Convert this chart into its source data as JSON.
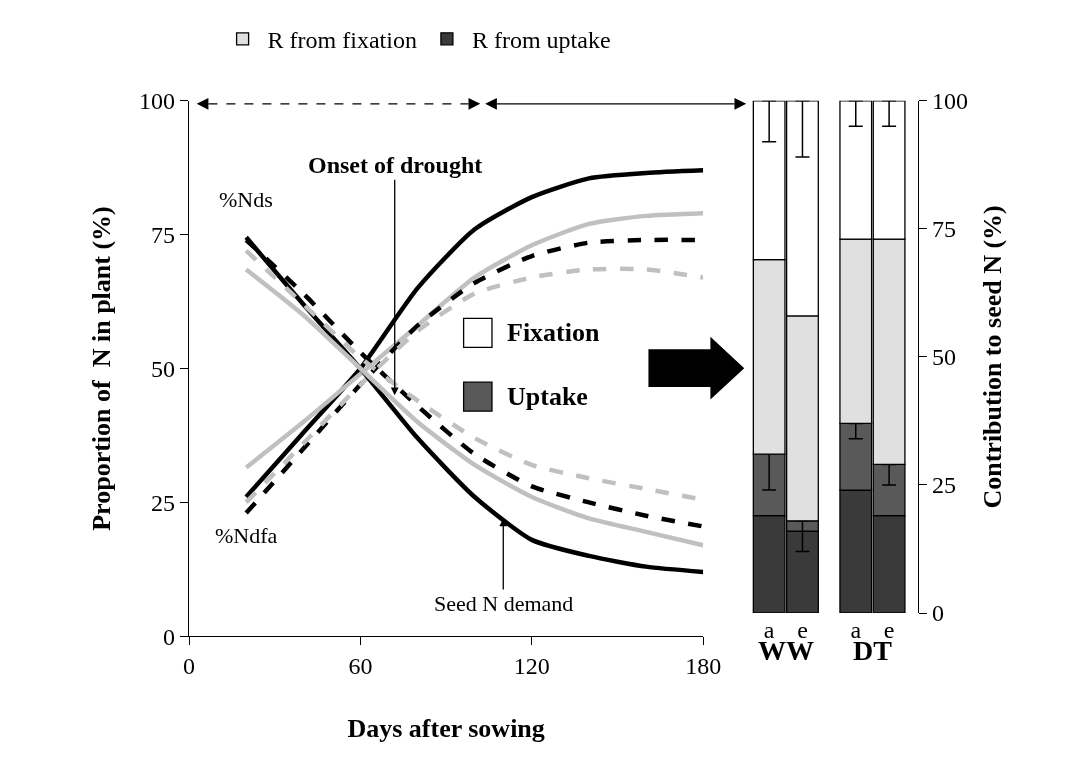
{
  "chart_data": [
    {
      "type": "line",
      "xlabel": "Days after sowing",
      "ylabel": "Proportion of  N in plant (%)",
      "x": [
        20,
        40,
        60,
        80,
        100,
        120,
        140,
        160,
        180
      ],
      "xlim": [
        0,
        180
      ],
      "xticks": [
        0,
        60,
        120,
        180
      ],
      "ylim": [
        0,
        100
      ],
      "yticks": [
        0,
        25,
        50,
        75,
        100
      ],
      "legend": false,
      "series": [
        {
          "name": "%Ndfa",
          "color": "#000000",
          "line_style": "solid",
          "values": [
            26,
            38,
            50,
            65,
            76,
            82,
            85.5,
            86.5,
            87
          ]
        },
        {
          "color": "#c0c0c0",
          "line_style": "solid",
          "values": [
            31.5,
            40,
            49,
            58,
            67,
            73,
            77,
            78.5,
            79
          ]
        },
        {
          "color": "#000000",
          "line_style": "dashed",
          "values": [
            23,
            35,
            47,
            58,
            66,
            71,
            73.5,
            74,
            74
          ]
        },
        {
          "color": "#c0c0c0",
          "line_style": "dashed",
          "values": [
            25,
            36,
            47,
            57,
            64,
            67,
            68.5,
            68.5,
            67
          ]
        },
        {
          "name": "%Nds",
          "color": "#000000",
          "line_style": "solid",
          "values": [
            74.5,
            62,
            50,
            37,
            26,
            18,
            15,
            13,
            12
          ]
        },
        {
          "color": "#c0c0c0",
          "line_style": "solid",
          "values": [
            68.5,
            60,
            50,
            40,
            32,
            26,
            22,
            19.5,
            17
          ]
        },
        {
          "color": "#000000",
          "line_style": "dashed",
          "values": [
            74,
            64,
            53,
            43,
            34,
            28,
            25,
            22.5,
            20.5
          ]
        },
        {
          "color": "#c0c0c0",
          "line_style": "dashed",
          "values": [
            72,
            62,
            52,
            44,
            37,
            32,
            29.5,
            27.5,
            25.5
          ]
        }
      ],
      "annotations": [
        {
          "text": "Onset of drought",
          "x": 72,
          "y": 45
        },
        {
          "text": "Seed N demand",
          "x": 110,
          "y": 22
        }
      ]
    },
    {
      "type": "bar",
      "stacked": true,
      "ylabel": "Contribution to seed N (%)",
      "categories": [
        "a",
        "e",
        "a",
        "e"
      ],
      "ylim": [
        0,
        100
      ],
      "yticks": [
        0,
        25,
        50,
        75,
        100
      ],
      "legend": "top",
      "series": [
        {
          "name": "R from uptake",
          "color": "#3a3a3a",
          "values": [
            19,
            16,
            24,
            19
          ]
        },
        {
          "name": "Uptake",
          "color": "#595959",
          "values": [
            12,
            2,
            13,
            10
          ],
          "errors": [
            [
              24,
              31
            ],
            [
              12,
              18
            ],
            [
              34,
              37
            ],
            [
              25,
              29
            ]
          ]
        },
        {
          "name": "R from fixation",
          "color": "#e0e0e0",
          "values": [
            38,
            40,
            36,
            44
          ]
        },
        {
          "name": "Fixation",
          "color": "#ffffff",
          "values": [
            31,
            42,
            27,
            27
          ],
          "errors": [
            [
              92,
              100
            ],
            [
              89,
              100
            ],
            [
              95,
              100
            ],
            [
              95,
              100
            ]
          ]
        }
      ],
      "annotations": [
        "WW",
        "DT"
      ]
    }
  ]
}
